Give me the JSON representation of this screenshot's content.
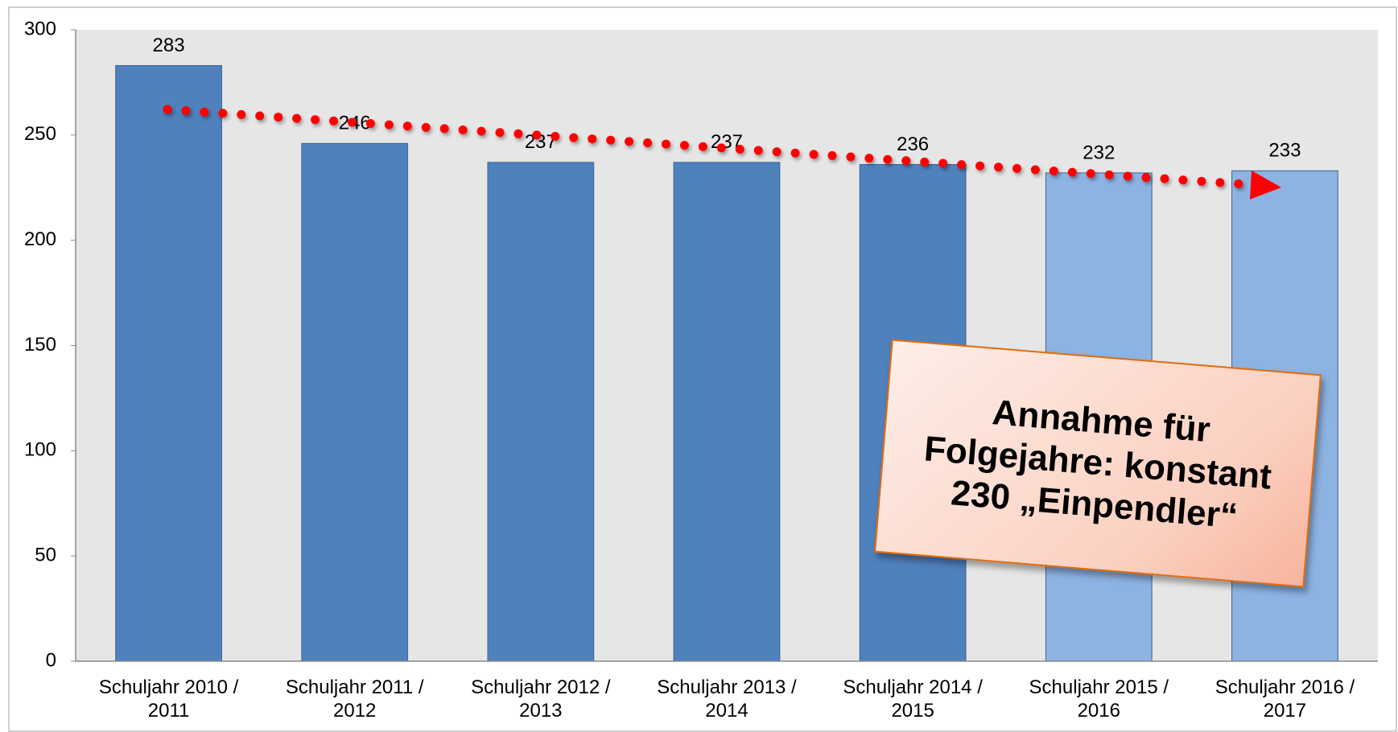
{
  "chart_data": {
    "type": "bar",
    "categories": [
      "Schuljahr 2010 / 2011",
      "Schuljahr 2011 / 2012",
      "Schuljahr 2012 / 2013",
      "Schuljahr 2013 / 2014",
      "Schuljahr 2014 / 2015",
      "Schuljahr 2015 / 2016",
      "Schuljahr 2016 / 2017"
    ],
    "values": [
      283,
      246,
      237,
      237,
      236,
      232,
      233
    ],
    "colors": [
      "#4f81bd",
      "#4f81bd",
      "#4f81bd",
      "#4f81bd",
      "#4f81bd",
      "#8db3e2",
      "#8db3e2"
    ],
    "ylim": [
      0,
      300
    ],
    "yticks": [
      0,
      50,
      100,
      150,
      200,
      250,
      300
    ],
    "annotation": "Annahme für Folgejahre: konstant 230 „Einpendler“"
  }
}
